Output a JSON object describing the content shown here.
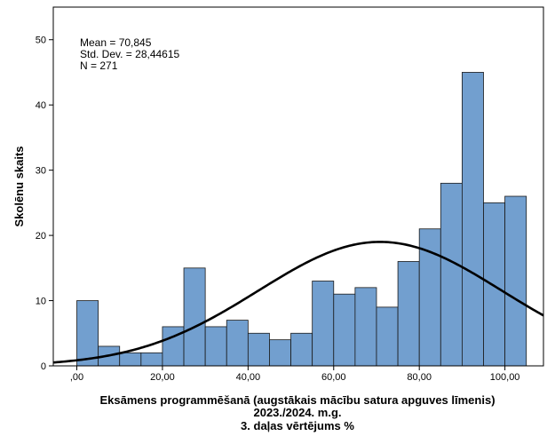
{
  "chart_data": {
    "type": "bar",
    "subtype": "histogram",
    "xlabel_lines": [
      "Eksāmens programmēšanā (augstākais mācību satura apguves līmenis)",
      "2023./2024. m.g.",
      "3. daļas vērtējums %"
    ],
    "ylabel": "Skolēnu skaits",
    "x_ticks": [
      0,
      20,
      40,
      60,
      80,
      100
    ],
    "x_tick_labels": [
      ",00",
      "20,00",
      "40,00",
      "60,00",
      "80,00",
      "100,00"
    ],
    "y_ticks": [
      0,
      10,
      20,
      30,
      40,
      50
    ],
    "y_tick_labels": [
      "0",
      "10",
      "20",
      "30",
      "40",
      "50"
    ],
    "xlim": [
      -5.5,
      109
    ],
    "ylim": [
      0,
      55
    ],
    "bin_width": 5,
    "bins": [
      {
        "x0": 0,
        "x1": 5,
        "count": 10
      },
      {
        "x0": 5,
        "x1": 10,
        "count": 3
      },
      {
        "x0": 10,
        "x1": 15,
        "count": 2
      },
      {
        "x0": 15,
        "x1": 20,
        "count": 2
      },
      {
        "x0": 20,
        "x1": 25,
        "count": 6
      },
      {
        "x0": 25,
        "x1": 30,
        "count": 15
      },
      {
        "x0": 30,
        "x1": 35,
        "count": 6
      },
      {
        "x0": 35,
        "x1": 40,
        "count": 7
      },
      {
        "x0": 40,
        "x1": 45,
        "count": 5
      },
      {
        "x0": 45,
        "x1": 50,
        "count": 4
      },
      {
        "x0": 50,
        "x1": 55,
        "count": 5
      },
      {
        "x0": 55,
        "x1": 60,
        "count": 13
      },
      {
        "x0": 60,
        "x1": 65,
        "count": 11
      },
      {
        "x0": 65,
        "x1": 70,
        "count": 12
      },
      {
        "x0": 70,
        "x1": 75,
        "count": 9
      },
      {
        "x0": 75,
        "x1": 80,
        "count": 16
      },
      {
        "x0": 80,
        "x1": 85,
        "count": 21
      },
      {
        "x0": 85,
        "x1": 90,
        "count": 28
      },
      {
        "x0": 90,
        "x1": 95,
        "count": 45
      },
      {
        "x0": 95,
        "x1": 100,
        "count": 25
      },
      {
        "x0": 100,
        "x1": 105,
        "count": 26
      }
    ],
    "normal_curve": {
      "mean": 70.845,
      "sd": 28.44615,
      "n": 271
    },
    "stats_lines": [
      "Mean = 70,845",
      "Std. Dev. = 28,44615",
      "N = 271"
    ],
    "grid": false,
    "colors": {
      "bar_fill": "#729fcf",
      "bar_stroke": "#1a1a1a",
      "curve": "#000000",
      "frame": "#000000"
    }
  }
}
